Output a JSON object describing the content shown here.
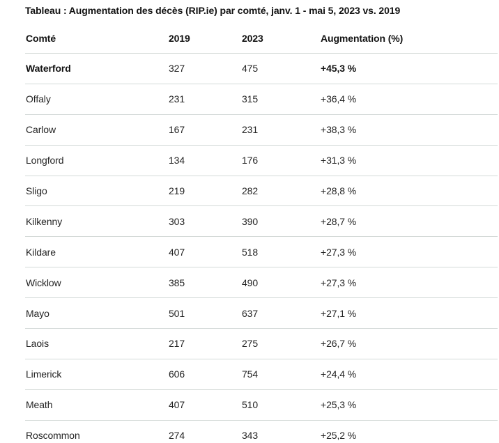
{
  "page_title": "Tableau : Augmentation des décès (RIP.ie) par comté, janv. 1 - mai 5, 2023 vs. 2019",
  "colors": {
    "background": "#ffffff",
    "text": "#242424",
    "text_strong": "#121212",
    "divider": "#d3d9d7"
  },
  "table": {
    "columns": [
      "Comté",
      "2019",
      "2023",
      "Augmentation (%)"
    ],
    "rows": [
      {
        "county": "Waterford",
        "deaths_2019": "327",
        "deaths_2023": "475",
        "increase_pct": "+45,3 %",
        "highlight": true
      },
      {
        "county": "Offaly",
        "deaths_2019": "231",
        "deaths_2023": "315",
        "increase_pct": "+36,4 %",
        "highlight": false
      },
      {
        "county": "Carlow",
        "deaths_2019": "167",
        "deaths_2023": "231",
        "increase_pct": "+38,3 %",
        "highlight": false
      },
      {
        "county": "Longford",
        "deaths_2019": "134",
        "deaths_2023": "176",
        "increase_pct": "+31,3 %",
        "highlight": false
      },
      {
        "county": "Sligo",
        "deaths_2019": "219",
        "deaths_2023": "282",
        "increase_pct": "+28,8 %",
        "highlight": false
      },
      {
        "county": "Kilkenny",
        "deaths_2019": "303",
        "deaths_2023": "390",
        "increase_pct": "+28,7 %",
        "highlight": false
      },
      {
        "county": "Kildare",
        "deaths_2019": "407",
        "deaths_2023": "518",
        "increase_pct": "+27,3 %",
        "highlight": false
      },
      {
        "county": "Wicklow",
        "deaths_2019": "385",
        "deaths_2023": "490",
        "increase_pct": "+27,3 %",
        "highlight": false
      },
      {
        "county": "Mayo",
        "deaths_2019": "501",
        "deaths_2023": "637",
        "increase_pct": "+27,1 %",
        "highlight": false
      },
      {
        "county": "Laois",
        "deaths_2019": "217",
        "deaths_2023": "275",
        "increase_pct": "+26,7 %",
        "highlight": false
      },
      {
        "county": "Limerick",
        "deaths_2019": "606",
        "deaths_2023": "754",
        "increase_pct": "+24,4 %",
        "highlight": false
      },
      {
        "county": "Meath",
        "deaths_2019": "407",
        "deaths_2023": "510",
        "increase_pct": "+25,3 %",
        "highlight": false
      },
      {
        "county": "Roscommon",
        "deaths_2019": "274",
        "deaths_2023": "343",
        "increase_pct": "+25,2 %",
        "highlight": false
      }
    ]
  },
  "chart_data": {
    "type": "table",
    "title": "Tableau : Augmentation des décès (RIP.ie) par comté, janv. 1 - mai 5, 2023 vs. 2019",
    "columns": [
      "Comté",
      "2019",
      "2023",
      "Augmentation (%)"
    ],
    "categories": [
      "Waterford",
      "Offaly",
      "Carlow",
      "Longford",
      "Sligo",
      "Kilkenny",
      "Kildare",
      "Wicklow",
      "Mayo",
      "Laois",
      "Limerick",
      "Meath",
      "Roscommon"
    ],
    "series": [
      {
        "name": "2019",
        "values": [
          327,
          231,
          167,
          134,
          219,
          303,
          407,
          385,
          501,
          217,
          606,
          407,
          274
        ]
      },
      {
        "name": "2023",
        "values": [
          475,
          315,
          231,
          176,
          282,
          390,
          518,
          490,
          637,
          275,
          754,
          510,
          343
        ]
      },
      {
        "name": "Augmentation (%)",
        "values": [
          45.3,
          36.4,
          38.3,
          31.3,
          28.8,
          28.7,
          27.3,
          27.3,
          27.1,
          26.7,
          24.4,
          25.3,
          25.2
        ]
      }
    ]
  }
}
